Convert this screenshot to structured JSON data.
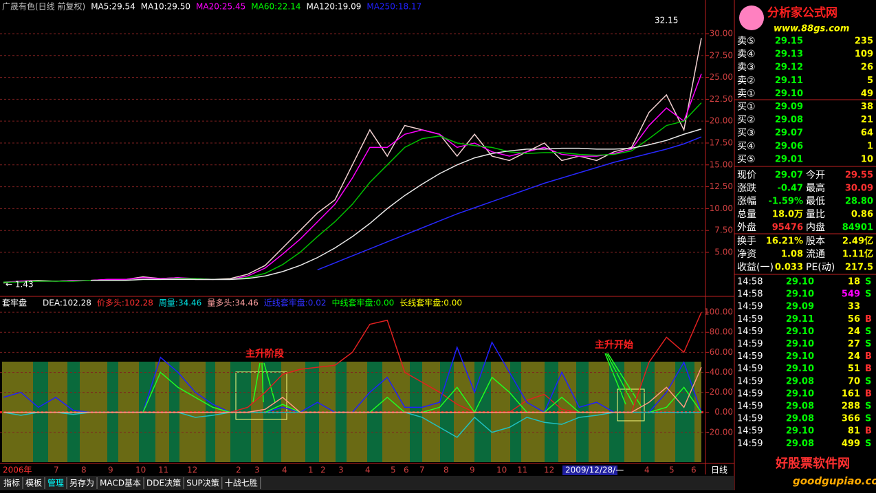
{
  "price_panel": {
    "legend": [
      {
        "text": "广晟有色(日线 前复权)",
        "color": "#c0c0c0"
      },
      {
        "text": "MA5:29.54",
        "color": "#ffffff"
      },
      {
        "text": "MA10:29.50",
        "color": "#ffffff"
      },
      {
        "text": "MA20:25.45",
        "color": "#ff00ff"
      },
      {
        "text": "MA60:22.14",
        "color": "#00ff00"
      },
      {
        "text": "MA120:19.09",
        "color": "#ffffff"
      },
      {
        "text": "MA250:18.17",
        "color": "#2020ff"
      }
    ],
    "ylim": [
      0,
      33.85
    ],
    "yticks": [
      {
        "value": 5,
        "label": "5.00"
      },
      {
        "value": 7.5,
        "label": "7.50"
      },
      {
        "value": 10,
        "label": "10.00"
      },
      {
        "value": 12.5,
        "label": "12.50"
      },
      {
        "value": 15,
        "label": "15.00"
      },
      {
        "value": 17.5,
        "label": "17.50"
      },
      {
        "value": 20,
        "label": "20.00"
      },
      {
        "value": 22.5,
        "label": "22.50"
      },
      {
        "value": 25,
        "label": "25.00"
      },
      {
        "value": 27.5,
        "label": "27.50"
      },
      {
        "value": 30,
        "label": "30.00"
      }
    ],
    "high_label": "32.15",
    "low_label": "← 1.43",
    "series": [
      {
        "color": "#f0d0d0",
        "values": [
          1.5,
          1.7,
          1.8,
          1.7,
          1.8,
          1.8,
          1.9,
          1.9,
          2.2,
          2.0,
          2.1,
          1.9,
          1.9,
          2.0,
          2.5,
          3.5,
          5.5,
          7.5,
          9.5,
          11,
          15,
          19,
          16,
          19.5,
          19,
          18.5,
          16,
          18.5,
          16,
          15.5,
          16.5,
          17.5,
          15.5,
          16,
          15.5,
          16.5,
          17,
          21,
          23,
          19,
          29.5
        ]
      },
      {
        "color": "#ff00ff",
        "values": [
          1.6,
          1.7,
          1.7,
          1.7,
          1.8,
          1.8,
          1.9,
          1.9,
          2.1,
          2.0,
          2.1,
          2.0,
          1.9,
          1.9,
          2.3,
          3.2,
          4.8,
          6.5,
          8.5,
          10.5,
          13.5,
          17,
          17,
          18.5,
          19,
          18.5,
          17,
          17.5,
          16.5,
          16,
          16.5,
          17,
          16.2,
          16,
          16,
          16.3,
          16.8,
          19.5,
          21.5,
          20,
          25.4
        ]
      },
      {
        "color": "#00c000",
        "values": [
          1.6,
          1.6,
          1.7,
          1.7,
          1.7,
          1.8,
          1.8,
          1.8,
          1.9,
          1.9,
          2.0,
          2.0,
          1.9,
          1.9,
          2.1,
          2.6,
          3.6,
          5.0,
          6.8,
          8.5,
          10.5,
          13,
          15,
          17,
          18,
          18.3,
          17.5,
          17.2,
          17,
          16.5,
          16.3,
          16.4,
          16.4,
          16.2,
          16.1,
          16.2,
          16.6,
          18,
          19.5,
          20,
          22.1
        ]
      },
      {
        "color": "#e8e8e8",
        "values": [
          null,
          null,
          null,
          null,
          null,
          1.8,
          1.8,
          1.8,
          1.9,
          1.9,
          1.9,
          1.9,
          1.9,
          1.9,
          2.0,
          2.3,
          2.8,
          3.5,
          4.4,
          5.5,
          6.8,
          8.3,
          10,
          11.5,
          12.8,
          14,
          15,
          15.8,
          16.3,
          16.6,
          16.8,
          16.8,
          16.9,
          16.9,
          16.8,
          16.8,
          16.9,
          17.3,
          17.8,
          18.5,
          19.1
        ]
      },
      {
        "color": "#2828ff",
        "values": [
          null,
          null,
          null,
          null,
          null,
          null,
          null,
          null,
          null,
          null,
          null,
          null,
          null,
          null,
          null,
          null,
          null,
          null,
          3.0,
          3.8,
          4.6,
          5.4,
          6.2,
          7.0,
          7.8,
          8.6,
          9.4,
          10.1,
          10.8,
          11.5,
          12.2,
          12.9,
          13.5,
          14.1,
          14.7,
          15.3,
          15.8,
          16.3,
          16.8,
          17.4,
          18.2
        ]
      }
    ]
  },
  "indicator_panel": {
    "title": "套牢盘",
    "legend": [
      {
        "text": "DEA:102.28",
        "color": "#ffffff"
      },
      {
        "text": "价多头:102.28",
        "color": "#ff3030"
      },
      {
        "text": "周量:34.46",
        "color": "#00e0e0"
      },
      {
        "text": "量多头:34.46",
        "color": "#ffa0a0"
      },
      {
        "text": "近线套牢盘:0.02",
        "color": "#3030ff"
      },
      {
        "text": "中线套牢盘:0.00",
        "color": "#00ff00"
      },
      {
        "text": "长线套牢盘:0.00",
        "color": "#ffff00"
      }
    ],
    "ylim": [
      -49.7,
      115.9
    ],
    "yticks": [
      {
        "value": -20,
        "label": "-20.00"
      },
      {
        "value": 0,
        "label": "0.00"
      },
      {
        "value": 20,
        "label": "20.00"
      },
      {
        "value": 40,
        "label": "40.00"
      },
      {
        "value": 60,
        "label": "60.00"
      },
      {
        "value": 80,
        "label": "80.00"
      },
      {
        "value": 100,
        "label": "100.00"
      }
    ],
    "series": [
      {
        "color": "#e02020",
        "values": [
          0,
          0,
          0,
          0,
          0,
          0,
          0,
          0,
          0,
          0,
          0,
          0,
          0,
          0,
          5,
          20,
          38,
          43,
          45,
          47,
          60,
          88,
          92,
          40,
          30,
          20,
          8,
          0,
          0,
          0,
          12,
          18,
          3,
          0,
          0,
          0,
          0,
          50,
          75,
          60,
          100
        ]
      },
      {
        "color": "#2020ff",
        "values": [
          15,
          20,
          5,
          15,
          2,
          0,
          0,
          0,
          0,
          55,
          40,
          20,
          8,
          0,
          0,
          0,
          5,
          0,
          10,
          0,
          0,
          20,
          35,
          5,
          5,
          10,
          65,
          20,
          70,
          40,
          10,
          0,
          40,
          5,
          10,
          0,
          0,
          0,
          20,
          50,
          0
        ]
      },
      {
        "color": "#20ff20",
        "values": [
          0,
          0,
          0,
          0,
          0,
          0,
          0,
          0,
          0,
          40,
          25,
          15,
          5,
          0,
          0,
          0,
          8,
          0,
          0,
          0,
          0,
          0,
          15,
          0,
          0,
          5,
          25,
          0,
          35,
          20,
          0,
          0,
          15,
          0,
          0,
          0,
          0,
          0,
          5,
          25,
          0
        ]
      },
      {
        "color": "#20c0c0",
        "values": [
          0,
          -3,
          0,
          0,
          -2,
          0,
          0,
          0,
          0,
          0,
          0,
          -5,
          -3,
          0,
          0,
          0,
          0,
          0,
          0,
          0,
          0,
          0,
          0,
          0,
          -5,
          -15,
          -25,
          -5,
          -20,
          -15,
          -5,
          -10,
          -12,
          -5,
          -3,
          0,
          0,
          0,
          0,
          0,
          0
        ]
      },
      {
        "color": "#ff9a80",
        "values": [
          0,
          0,
          0,
          0,
          0,
          0,
          0,
          0,
          0,
          0,
          0,
          0,
          0,
          0,
          0,
          3,
          15,
          0,
          0,
          0,
          0,
          0,
          0,
          0,
          0,
          0,
          0,
          0,
          0,
          0,
          0,
          0,
          0,
          0,
          0,
          0,
          0,
          10,
          25,
          5,
          45
        ]
      }
    ],
    "annotations": [
      "主升阶段",
      "主升开始"
    ]
  },
  "time_axis": {
    "labels": [
      "2006年",
      "7",
      "8",
      "9",
      "10",
      "11",
      "12",
      "2",
      "3",
      "4",
      "1",
      "2",
      "3",
      "4",
      "5",
      "6",
      "7",
      "8",
      "9",
      "10",
      "11",
      "12",
      "2009/12/28/—",
      "4",
      "5",
      "6"
    ],
    "period": "日线"
  },
  "logo": {
    "title": "分析家公式网",
    "url": "www.88gs.com"
  },
  "order_book": [
    [
      "卖⑤",
      "29.15",
      "235"
    ],
    [
      "卖④",
      "29.13",
      "109"
    ],
    [
      "卖③",
      "29.12",
      "26"
    ],
    [
      "卖②",
      "29.11",
      "5"
    ],
    [
      "卖①",
      "29.10",
      "49"
    ],
    [
      "买①",
      "29.09",
      "38"
    ],
    [
      "买②",
      "29.08",
      "21"
    ],
    [
      "买③",
      "29.07",
      "64"
    ],
    [
      "买④",
      "29.06",
      "1"
    ],
    [
      "买⑤",
      "29.01",
      "10"
    ]
  ],
  "quote": [
    [
      {
        "text": "现价",
        "color": "#ffffff"
      },
      {
        "text": "29.07",
        "color": "#00ff00"
      },
      {
        "text": "今开",
        "color": "#ffffff"
      },
      {
        "text": "29.55",
        "color": "#ff3030"
      }
    ],
    [
      {
        "text": "涨跌",
        "color": "#ffffff"
      },
      {
        "text": "-0.47",
        "color": "#00ff00"
      },
      {
        "text": "最高",
        "color": "#ffffff"
      },
      {
        "text": "30.09",
        "color": "#ff3030"
      }
    ],
    [
      {
        "text": "涨幅",
        "color": "#ffffff"
      },
      {
        "text": "-1.59%",
        "color": "#00ff00"
      },
      {
        "text": "最低",
        "color": "#ffffff"
      },
      {
        "text": "28.80",
        "color": "#00ff00"
      }
    ],
    [
      {
        "text": "总量",
        "color": "#ffffff"
      },
      {
        "text": "18.0万",
        "color": "#ffff00"
      },
      {
        "text": "量比",
        "color": "#ffffff"
      },
      {
        "text": "0.86",
        "color": "#ffff00"
      }
    ],
    [
      {
        "text": "外盘",
        "color": "#ffffff"
      },
      {
        "text": "95476",
        "color": "#ff3030"
      },
      {
        "text": "内盘",
        "color": "#ffffff"
      },
      {
        "text": "84901",
        "color": "#00ff00"
      }
    ],
    [
      {
        "text": "换手",
        "color": "#ffffff"
      },
      {
        "text": "16.21%",
        "color": "#ffff00"
      },
      {
        "text": "股本",
        "color": "#ffffff"
      },
      {
        "text": "2.49亿",
        "color": "#ffff00"
      }
    ],
    [
      {
        "text": "净资",
        "color": "#ffffff"
      },
      {
        "text": "1.08",
        "color": "#ffff00"
      },
      {
        "text": "流通",
        "color": "#ffffff"
      },
      {
        "text": "1.11亿",
        "color": "#ffff00"
      }
    ],
    [
      {
        "text": "收益(一)",
        "color": "#ffffff"
      },
      {
        "text": "0.033",
        "color": "#ffff00"
      },
      {
        "text": "PE(动)",
        "color": "#ffffff"
      },
      {
        "text": "217.5",
        "color": "#ffff00"
      }
    ]
  ],
  "trades": [
    [
      "14:58",
      "29.10",
      "18",
      "S"
    ],
    [
      "14:58",
      "29.10",
      "549",
      "S"
    ],
    [
      "14:59",
      "29.09",
      "33",
      null
    ],
    [
      "14:59",
      "29.11",
      "56",
      "B"
    ],
    [
      "14:59",
      "29.10",
      "24",
      "S"
    ],
    [
      "14:59",
      "29.10",
      "27",
      "S"
    ],
    [
      "14:59",
      "29.10",
      "24",
      "B"
    ],
    [
      "14:59",
      "29.10",
      "51",
      "B"
    ],
    [
      "14:59",
      "29.08",
      "70",
      "S"
    ],
    [
      "14:59",
      "29.10",
      "161",
      "B"
    ],
    [
      "14:59",
      "29.08",
      "288",
      "S"
    ],
    [
      "14:59",
      "29.08",
      "366",
      "S"
    ],
    [
      "14:59",
      "29.10",
      "81",
      "B"
    ],
    [
      "14:59",
      "29.08",
      "499",
      "S"
    ]
  ],
  "footer_logo": {
    "title": "好股票软件网",
    "url": "goodgupiao.com"
  },
  "tabs": [
    "指标",
    "模板",
    "管理",
    "另存为",
    "MACD基本",
    "DDE决策",
    "SUP决策",
    "十战七胜"
  ]
}
